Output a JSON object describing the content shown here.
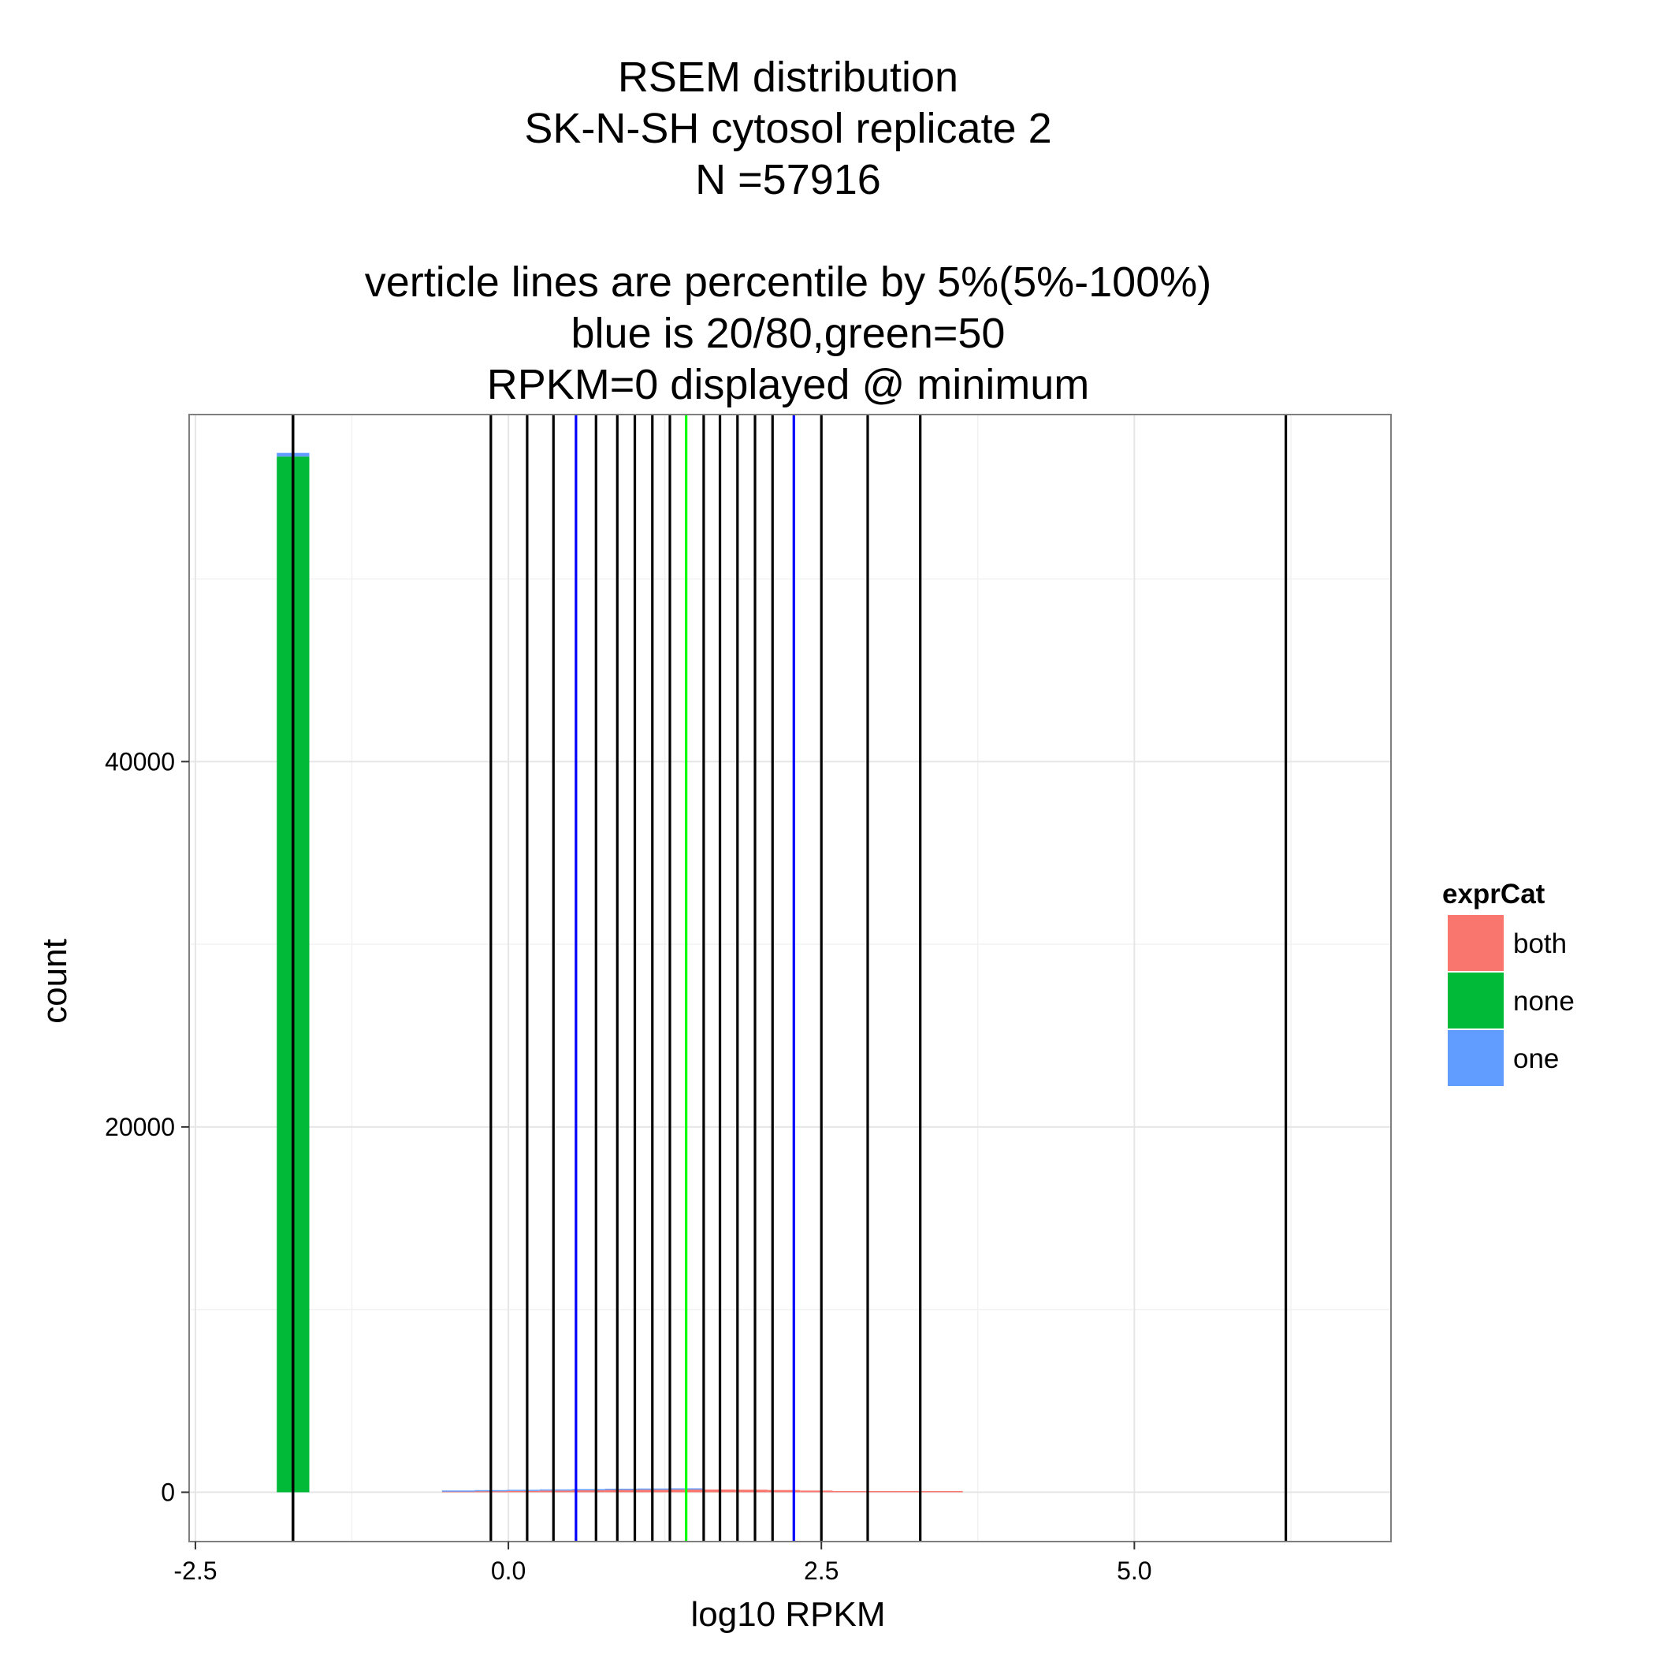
{
  "chart_data": {
    "type": "bar",
    "title_lines": [
      "RSEM distribution",
      "SK-N-SH cytosol replicate 2",
      "N =57916",
      "",
      "verticle lines are percentile by 5%(5%-100%)",
      "blue is 20/80,green=50",
      "RPKM=0 displayed @ minimum"
    ],
    "xlabel": "log10 RPKM",
    "ylabel": "count",
    "xlim": [
      -2.55,
      7.05
    ],
    "ylim": [
      -2700,
      59000
    ],
    "x_ticks": [
      -2.5,
      0.0,
      2.5,
      5.0
    ],
    "x_tick_labels": [
      "-2.5",
      "0.0",
      "2.5",
      "5.0"
    ],
    "y_ticks": [
      0,
      20000,
      40000
    ],
    "y_tick_labels": [
      "0",
      "20000",
      "40000"
    ],
    "x_minor_gridlines": [
      -1.25,
      1.25,
      3.75,
      6.25
    ],
    "y_minor_gridlines": [
      10000,
      30000,
      50000
    ],
    "grid": true,
    "legend": {
      "title": "exprCat",
      "position": "right",
      "entries": [
        {
          "label": "both",
          "color": "#F8766D"
        },
        {
          "label": "none",
          "color": "#00BA38"
        },
        {
          "label": "one",
          "color": "#619CFF"
        }
      ]
    },
    "bar_width": 0.26,
    "bars": [
      {
        "x": -1.72,
        "segments": [
          {
            "category": "none",
            "value": 56700
          },
          {
            "category": "one",
            "value": 200
          }
        ]
      },
      {
        "x": -0.4,
        "segments": [
          {
            "category": "both",
            "value": 30
          },
          {
            "category": "one",
            "value": 20
          }
        ]
      },
      {
        "x": -0.14,
        "segments": [
          {
            "category": "both",
            "value": 50
          },
          {
            "category": "one",
            "value": 30
          }
        ]
      },
      {
        "x": 0.12,
        "segments": [
          {
            "category": "both",
            "value": 70
          },
          {
            "category": "one",
            "value": 30
          }
        ]
      },
      {
        "x": 0.38,
        "segments": [
          {
            "category": "both",
            "value": 90
          },
          {
            "category": "one",
            "value": 30
          }
        ]
      },
      {
        "x": 0.64,
        "segments": [
          {
            "category": "both",
            "value": 110
          },
          {
            "category": "one",
            "value": 20
          }
        ]
      },
      {
        "x": 0.9,
        "segments": [
          {
            "category": "both",
            "value": 130
          },
          {
            "category": "one",
            "value": 20
          }
        ]
      },
      {
        "x": 1.16,
        "segments": [
          {
            "category": "both",
            "value": 140
          },
          {
            "category": "one",
            "value": 10
          }
        ]
      },
      {
        "x": 1.42,
        "segments": [
          {
            "category": "both",
            "value": 150
          },
          {
            "category": "one",
            "value": 10
          }
        ]
      },
      {
        "x": 1.68,
        "segments": [
          {
            "category": "both",
            "value": 150
          }
        ]
      },
      {
        "x": 1.94,
        "segments": [
          {
            "category": "both",
            "value": 140
          }
        ]
      },
      {
        "x": 2.2,
        "segments": [
          {
            "category": "both",
            "value": 120
          }
        ]
      },
      {
        "x": 2.46,
        "segments": [
          {
            "category": "both",
            "value": 90
          }
        ]
      },
      {
        "x": 2.72,
        "segments": [
          {
            "category": "both",
            "value": 60
          }
        ]
      },
      {
        "x": 2.98,
        "segments": [
          {
            "category": "both",
            "value": 40
          }
        ]
      },
      {
        "x": 3.24,
        "segments": [
          {
            "category": "both",
            "value": 25
          }
        ]
      },
      {
        "x": 3.5,
        "segments": [
          {
            "category": "both",
            "value": 15
          }
        ]
      }
    ],
    "percentile_lines": [
      {
        "percentile": 5,
        "x": -1.72,
        "color": "#000000"
      },
      {
        "percentile": 10,
        "x": -1.72,
        "color": "#000000"
      },
      {
        "percentile": 15,
        "x": -1.72,
        "color": "#000000"
      },
      {
        "percentile": 20,
        "x": -1.72,
        "color": "#0000FF"
      },
      {
        "percentile": 25,
        "x": -1.72,
        "color": "#000000"
      },
      {
        "percentile": 30,
        "x": -1.72,
        "color": "#000000"
      },
      {
        "percentile": 35,
        "x": -1.72,
        "color": "#000000"
      },
      {
        "percentile": 40,
        "x": -1.72,
        "color": "#000000"
      },
      {
        "percentile": 45,
        "x": -1.72,
        "color": "#000000"
      },
      {
        "percentile": 50,
        "x": -1.72,
        "color": "#00FF00"
      },
      {
        "percentile": 55,
        "x": -1.72,
        "color": "#000000"
      },
      {
        "percentile": 60,
        "x": -1.72,
        "color": "#000000"
      },
      {
        "percentile": 65,
        "x": -1.72,
        "color": "#000000"
      },
      {
        "percentile": 70,
        "x": -1.72,
        "color": "#000000"
      },
      {
        "percentile": 75,
        "x": -1.72,
        "color": "#000000"
      },
      {
        "percentile": 80,
        "x": -1.72,
        "color": "#0000FF"
      },
      {
        "percentile": 85,
        "x": -1.72,
        "color": "#000000"
      },
      {
        "percentile": 90,
        "x": -1.72,
        "color": "#000000"
      },
      {
        "percentile": 95,
        "x": -1.72,
        "color": "#000000"
      },
      {
        "percentile": 100,
        "x": -1.72,
        "color": "#000000"
      }
    ],
    "extra_lines": [
      {
        "x": -0.14,
        "color": "#000000"
      },
      {
        "x": 0.15,
        "color": "#000000"
      },
      {
        "x": 0.36,
        "color": "#000000"
      },
      {
        "x": 0.54,
        "color": "#0000FF"
      },
      {
        "x": 0.7,
        "color": "#000000"
      },
      {
        "x": 0.87,
        "color": "#000000"
      },
      {
        "x": 1.01,
        "color": "#000000"
      },
      {
        "x": 1.15,
        "color": "#000000"
      },
      {
        "x": 1.29,
        "color": "#000000"
      },
      {
        "x": 1.42,
        "color": "#00FF00"
      },
      {
        "x": 1.56,
        "color": "#000000"
      },
      {
        "x": 1.69,
        "color": "#000000"
      },
      {
        "x": 1.83,
        "color": "#000000"
      },
      {
        "x": 1.97,
        "color": "#000000"
      },
      {
        "x": 2.11,
        "color": "#000000"
      },
      {
        "x": 2.28,
        "color": "#0000FF"
      },
      {
        "x": 2.5,
        "color": "#000000"
      },
      {
        "x": 2.87,
        "color": "#000000"
      },
      {
        "x": 3.29,
        "color": "#000000"
      },
      {
        "x": 6.21,
        "color": "#000000"
      }
    ]
  }
}
